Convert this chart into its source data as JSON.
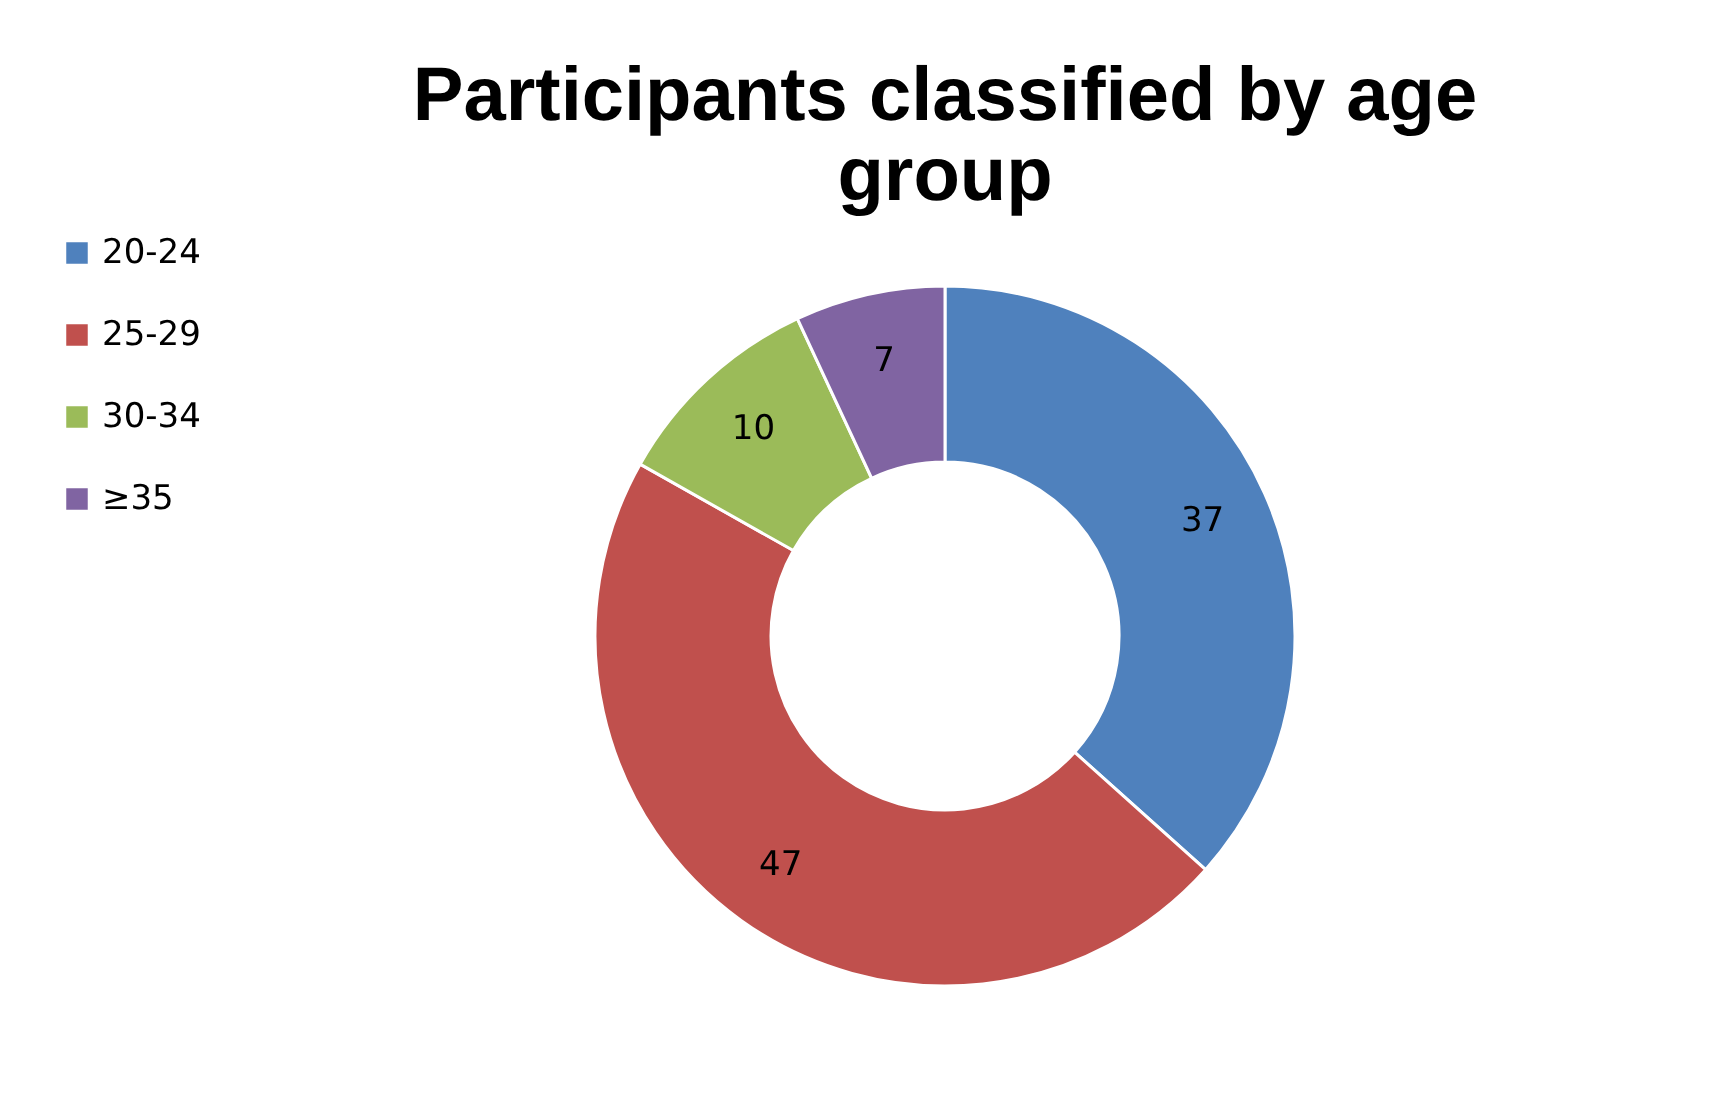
{
  "chart_data": {
    "type": "donut",
    "title": "Participants classified by age group",
    "categories": [
      "20-24",
      "25-29",
      "30-34",
      "≥35"
    ],
    "values": [
      37,
      47,
      10,
      7
    ],
    "colors": [
      "#4f81bd",
      "#c0504d",
      "#9bbb59",
      "#8064a2"
    ],
    "data_labels": true,
    "legend": "left"
  }
}
